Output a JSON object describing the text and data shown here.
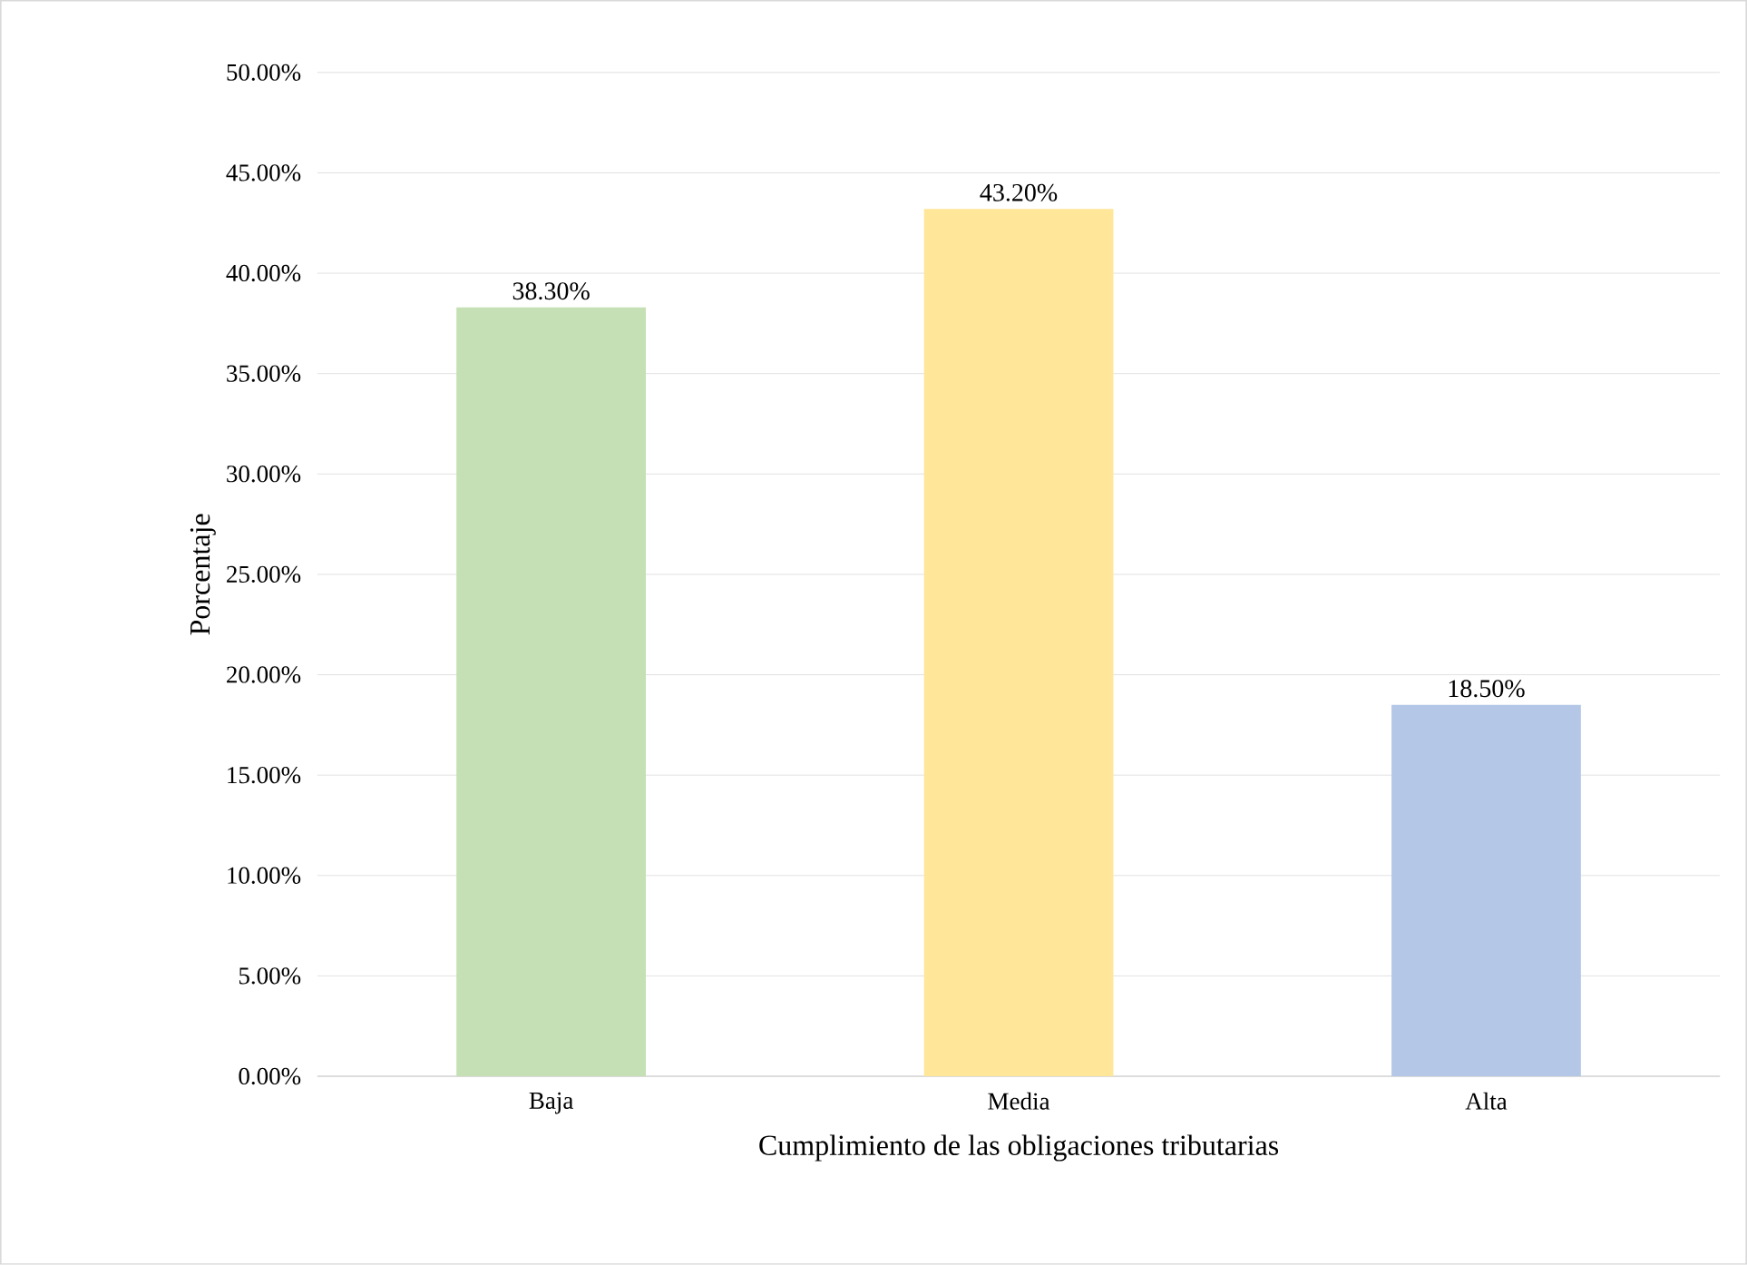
{
  "chart_data": {
    "type": "bar",
    "xlabel": "Cumplimiento de las obligaciones tributarias",
    "ylabel": "Porcentaje",
    "categories": [
      "Baja",
      "Media",
      "Alta"
    ],
    "values": [
      38.3,
      43.2,
      18.5
    ],
    "colors": [
      "#c5e0b4",
      "#ffe699",
      "#b4c7e7"
    ],
    "value_labels": [
      "38.30%",
      "43.20%",
      "18.50%"
    ],
    "ylim": [
      0,
      50
    ],
    "yticks": [
      {
        "value": 0,
        "label": "0.00%"
      },
      {
        "value": 5,
        "label": "5.00%"
      },
      {
        "value": 10,
        "label": "10.00%"
      },
      {
        "value": 15,
        "label": "15.00%"
      },
      {
        "value": 20,
        "label": "20.00%"
      },
      {
        "value": 25,
        "label": "25.00%"
      },
      {
        "value": 30,
        "label": "30.00%"
      },
      {
        "value": 35,
        "label": "35.00%"
      },
      {
        "value": 40,
        "label": "40.00%"
      },
      {
        "value": 45,
        "label": "45.00%"
      },
      {
        "value": 50,
        "label": "50.00%"
      }
    ],
    "grid": "y"
  }
}
